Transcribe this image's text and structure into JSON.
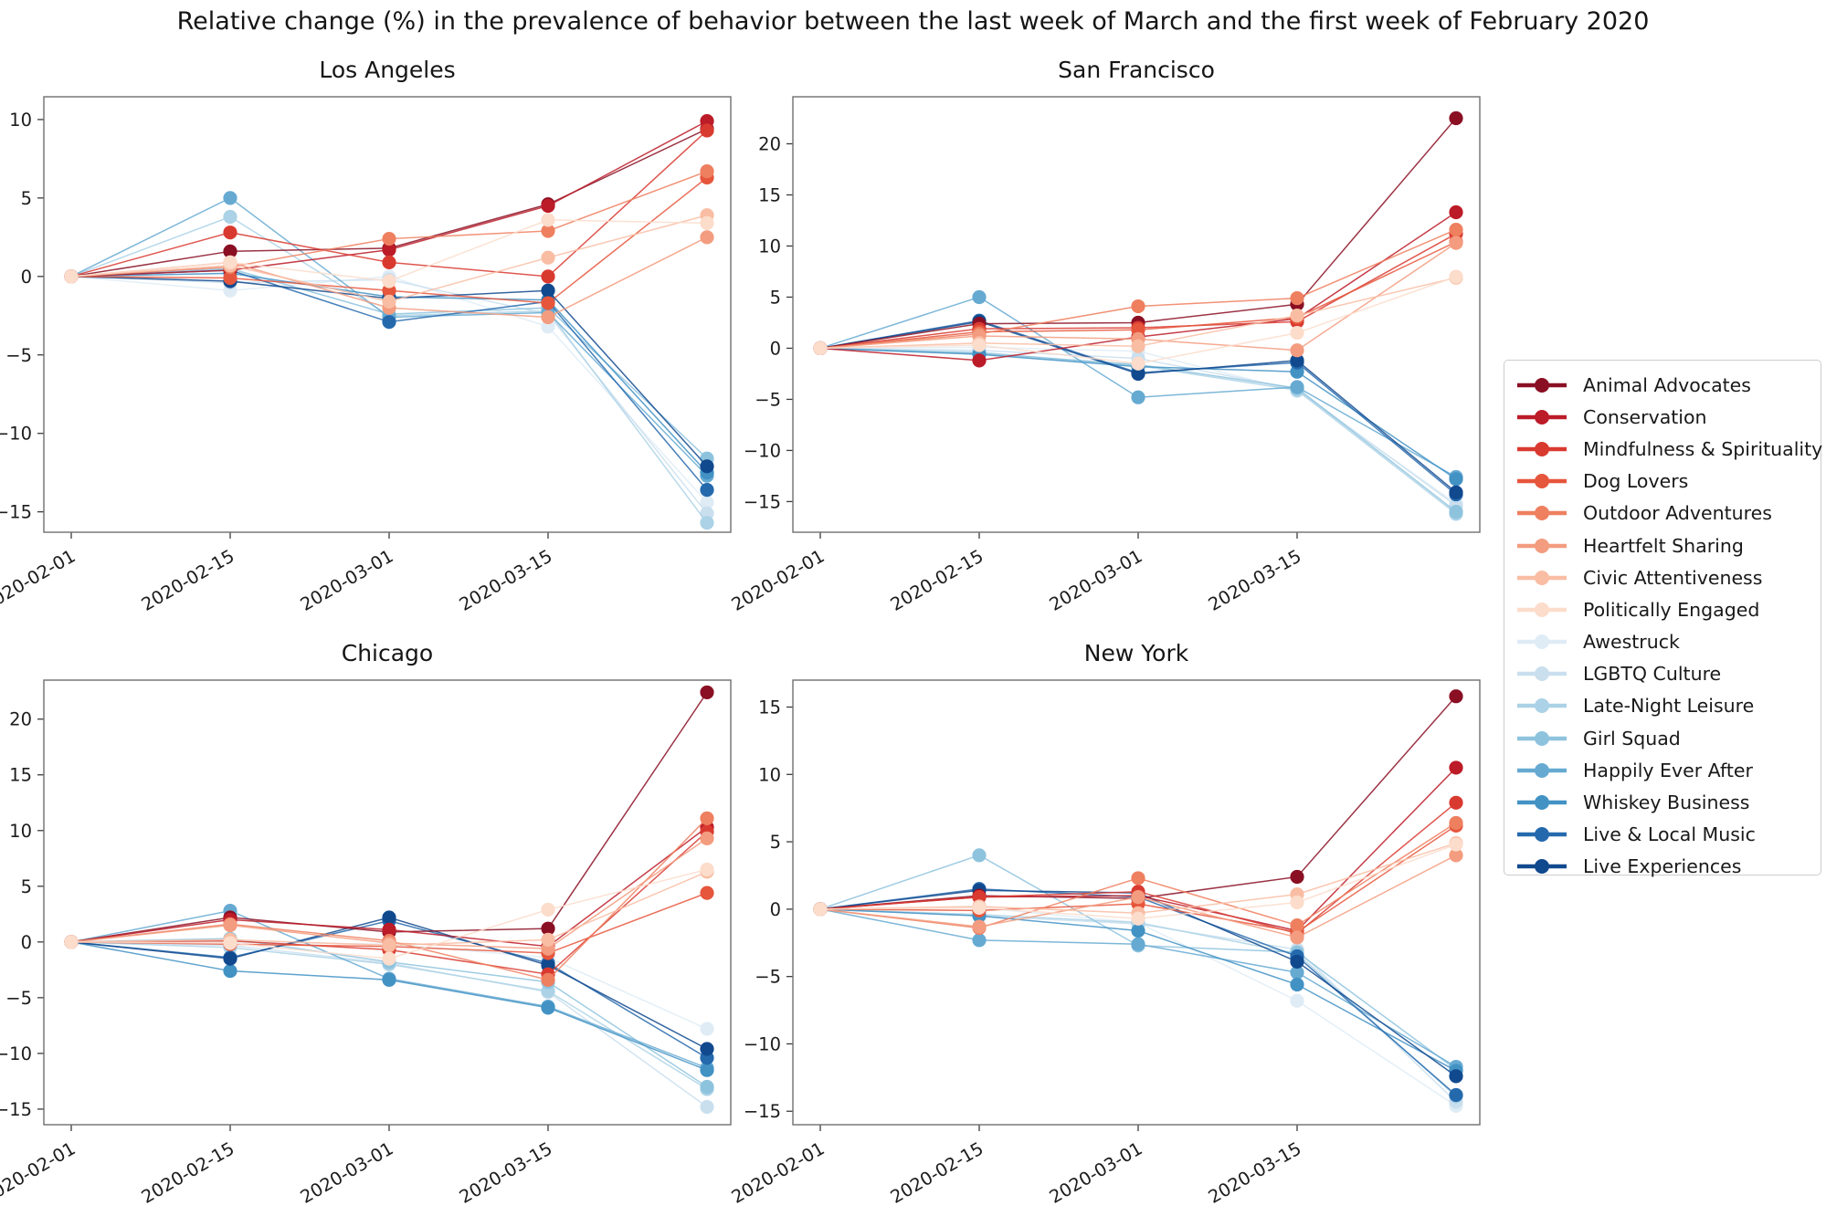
{
  "title": "Relative change (%) in the prevalence of behavior between the last week of March and the first week of February 2020",
  "legend": {
    "entries": [
      "Animal Advocates",
      "Conservation",
      "Mindfulness & Spirituality",
      "Dog Lovers",
      "Outdoor Adventures",
      "Heartfelt Sharing",
      "Civic Attentiveness",
      "Politically Engaged",
      "Awestruck",
      "LGBTQ Culture",
      "Late-Night Leisure",
      "Girl Squad",
      "Happily Ever After",
      "Whiskey Business",
      "Live & Local Music",
      "Live Experiences"
    ],
    "position": "center right"
  },
  "chart_data": {
    "type": "line",
    "title": "Relative change (%) in the prevalence of behavior between the last week of March and the first week of February 2020",
    "x_tick_labels": [
      "2020-02-01",
      "2020-02-15",
      "2020-03-01",
      "2020-03-15"
    ],
    "x_points_per_series": 5,
    "x_note": "5 biweekly data points; the 5th (last week of March) has no tick label",
    "grid": false,
    "marker": "circle",
    "groups": [
      "Animal Advocates",
      "Conservation",
      "Mindfulness & Spirituality",
      "Dog Lovers",
      "Outdoor Adventures",
      "Heartfelt Sharing",
      "Civic Attentiveness",
      "Politically Engaged",
      "Awestruck",
      "LGBTQ Culture",
      "Late-Night Leisure",
      "Girl Squad",
      "Happily Ever After",
      "Whiskey Business",
      "Live & Local Music",
      "Live Experiences"
    ],
    "colors": [
      "#8a0f23",
      "#bc1b28",
      "#d93a30",
      "#e6563c",
      "#ee7f5f",
      "#f39c7f",
      "#f9bda3",
      "#fcdccb",
      "#dfecf6",
      "#cadfee",
      "#abd2e6",
      "#8ec3de",
      "#66aad2",
      "#4292c4",
      "#2569ad",
      "#11498e"
    ],
    "subplots": [
      {
        "title": "Los Angeles",
        "ylim": [
          -16.3,
          11.45
        ],
        "yticks": [
          10,
          5,
          0,
          -5,
          -10,
          -15
        ],
        "series": [
          [
            0,
            1.6,
            1.8,
            4.6,
            9.4
          ],
          [
            0,
            0.4,
            1.7,
            4.5,
            9.9
          ],
          [
            0,
            2.8,
            0.9,
            0.0,
            9.3
          ],
          [
            0,
            -0.1,
            -0.9,
            -1.7,
            6.3
          ],
          [
            0,
            0.6,
            2.4,
            2.9,
            6.7
          ],
          [
            0,
            0.9,
            -2.0,
            -2.6,
            2.5
          ],
          [
            0,
            0.7,
            -1.6,
            1.2,
            3.9
          ],
          [
            0,
            0.9,
            -0.3,
            3.6,
            3.4
          ],
          [
            0,
            -0.9,
            0.0,
            -3.2,
            -14.4
          ],
          [
            0,
            -0.4,
            -0.2,
            -2.4,
            -15.1
          ],
          [
            0,
            3.8,
            -2.5,
            -2.2,
            -15.7
          ],
          [
            0,
            0.5,
            -2.4,
            -2.0,
            -11.6
          ],
          [
            0,
            5.0,
            -2.6,
            -2.3,
            -12.7
          ],
          [
            0,
            0.2,
            -1.3,
            -1.5,
            -12.5
          ],
          [
            0,
            0.4,
            -2.9,
            -1.6,
            -13.6
          ],
          [
            0,
            -0.3,
            -1.4,
            -0.9,
            -12.1
          ]
        ]
      },
      {
        "title": "San Francisco",
        "ylim": [
          -18.0,
          24.6
        ],
        "yticks": [
          20,
          15,
          10,
          5,
          0,
          -5,
          -10,
          -15
        ],
        "series": [
          [
            0,
            2.4,
            2.5,
            4.3,
            22.5
          ],
          [
            0,
            -1.2,
            1.1,
            2.9,
            13.3
          ],
          [
            0,
            1.9,
            2.0,
            2.6,
            11.2
          ],
          [
            0,
            1.6,
            1.8,
            3.0,
            10.4
          ],
          [
            0,
            1.4,
            4.1,
            4.9,
            11.6
          ],
          [
            0,
            1.2,
            0.9,
            -0.2,
            10.3
          ],
          [
            0,
            0.5,
            0.2,
            3.2,
            6.9
          ],
          [
            0,
            0.3,
            -1.5,
            1.5,
            7.0
          ],
          [
            0,
            0.1,
            -0.3,
            -4.2,
            -15.2
          ],
          [
            0,
            -0.2,
            -1.0,
            -4.0,
            -15.4
          ],
          [
            0,
            -0.4,
            -1.7,
            -4.1,
            -16.2
          ],
          [
            0,
            -0.5,
            -1.6,
            -3.9,
            -16.0
          ],
          [
            0,
            5.0,
            -4.8,
            -3.8,
            -12.6
          ],
          [
            0,
            -0.6,
            -1.8,
            -2.3,
            -12.8
          ],
          [
            0,
            2.7,
            -2.4,
            -1.4,
            -14.3
          ],
          [
            0,
            2.6,
            -2.5,
            -1.2,
            -14.1
          ]
        ]
      },
      {
        "title": "Chicago",
        "ylim": [
          -16.4,
          23.5
        ],
        "yticks": [
          20,
          15,
          10,
          5,
          0,
          -5,
          -10,
          -15
        ],
        "series": [
          [
            0,
            2.2,
            0.9,
            1.2,
            22.4
          ],
          [
            0,
            2.0,
            1.1,
            -0.4,
            10.3
          ],
          [
            0,
            0.1,
            -0.7,
            -2.9,
            9.9
          ],
          [
            0,
            -0.2,
            -0.4,
            -1.0,
            4.4
          ],
          [
            0,
            1.6,
            0.1,
            -3.4,
            11.1
          ],
          [
            0,
            1.5,
            -0.1,
            -0.6,
            9.3
          ],
          [
            0,
            0.2,
            -0.3,
            0.2,
            6.3
          ],
          [
            0,
            -0.1,
            -1.5,
            2.9,
            6.5
          ],
          [
            0,
            0.0,
            -0.2,
            -1.4,
            -7.8
          ],
          [
            0,
            -0.3,
            -1.9,
            -4.5,
            -14.8
          ],
          [
            0,
            -0.5,
            -2.0,
            -4.4,
            -13.2
          ],
          [
            0,
            0.3,
            -1.8,
            -3.6,
            -13.0
          ],
          [
            0,
            2.8,
            -3.3,
            -5.8,
            -11.3
          ],
          [
            0,
            -2.6,
            -3.4,
            -5.9,
            -11.5
          ],
          [
            0,
            -1.4,
            1.9,
            -1.9,
            -10.4
          ],
          [
            0,
            -1.5,
            2.2,
            -2.1,
            -9.6
          ]
        ]
      },
      {
        "title": "New York",
        "ylim": [
          -16.0,
          17.0
        ],
        "yticks": [
          15,
          10,
          5,
          0,
          -5,
          -10,
          -15
        ],
        "series": [
          [
            0,
            1.0,
            0.8,
            2.4,
            15.8
          ],
          [
            0,
            0.9,
            1.0,
            -1.6,
            10.5
          ],
          [
            0,
            0.9,
            1.3,
            -1.8,
            7.9
          ],
          [
            0,
            -0.1,
            0.4,
            -1.7,
            6.2
          ],
          [
            0,
            -1.4,
            2.3,
            -1.2,
            6.4
          ],
          [
            0,
            -1.3,
            0.9,
            -2.1,
            4.0
          ],
          [
            0,
            0.2,
            -0.3,
            1.1,
            4.9
          ],
          [
            0,
            0.1,
            -0.7,
            0.5,
            4.8
          ],
          [
            0,
            0.1,
            -1.0,
            -6.8,
            -14.6
          ],
          [
            0,
            -0.5,
            -1.1,
            -3.0,
            -14.3
          ],
          [
            0,
            -0.4,
            -1.0,
            -3.3,
            -13.9
          ],
          [
            0,
            4.0,
            -2.7,
            -3.2,
            -11.9
          ],
          [
            0,
            -2.3,
            -2.6,
            -4.7,
            -11.7
          ],
          [
            0,
            -0.5,
            -1.6,
            -5.6,
            -12.0
          ],
          [
            0,
            1.5,
            0.9,
            -3.5,
            -13.8
          ],
          [
            0,
            1.4,
            1.2,
            -3.9,
            -12.4
          ]
        ]
      }
    ]
  }
}
